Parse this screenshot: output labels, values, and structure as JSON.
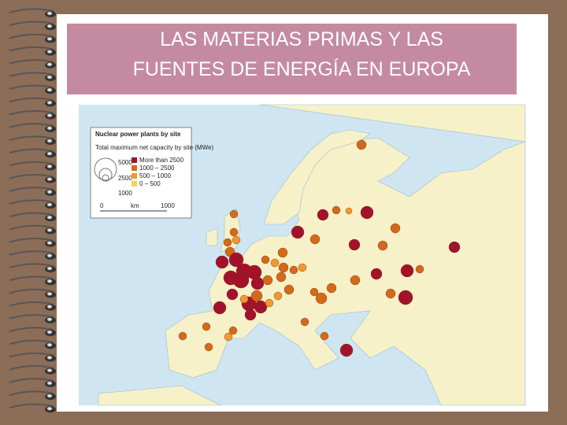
{
  "header": {
    "title": "LAS MATERIAS PRIMAS Y LAS FUENTES DE ENERGÍA EN EUROPA"
  },
  "legend": {
    "title": "Nuclear power plants by site",
    "subtitle": "Total maximum net capacity by site (MWe)",
    "sizes": [
      "5000",
      "2500",
      "1000"
    ],
    "classes": [
      {
        "label": "More than 2500",
        "color": "#a3122b"
      },
      {
        "label": "1000 – 2500",
        "color": "#d36a1a"
      },
      {
        "label": "500 – 1000",
        "color": "#ee9a2e"
      },
      {
        "label": "0 – 500",
        "color": "#f7cf5c"
      }
    ],
    "scale": {
      "start": "0",
      "unit": "km",
      "end": "1000"
    }
  }
}
